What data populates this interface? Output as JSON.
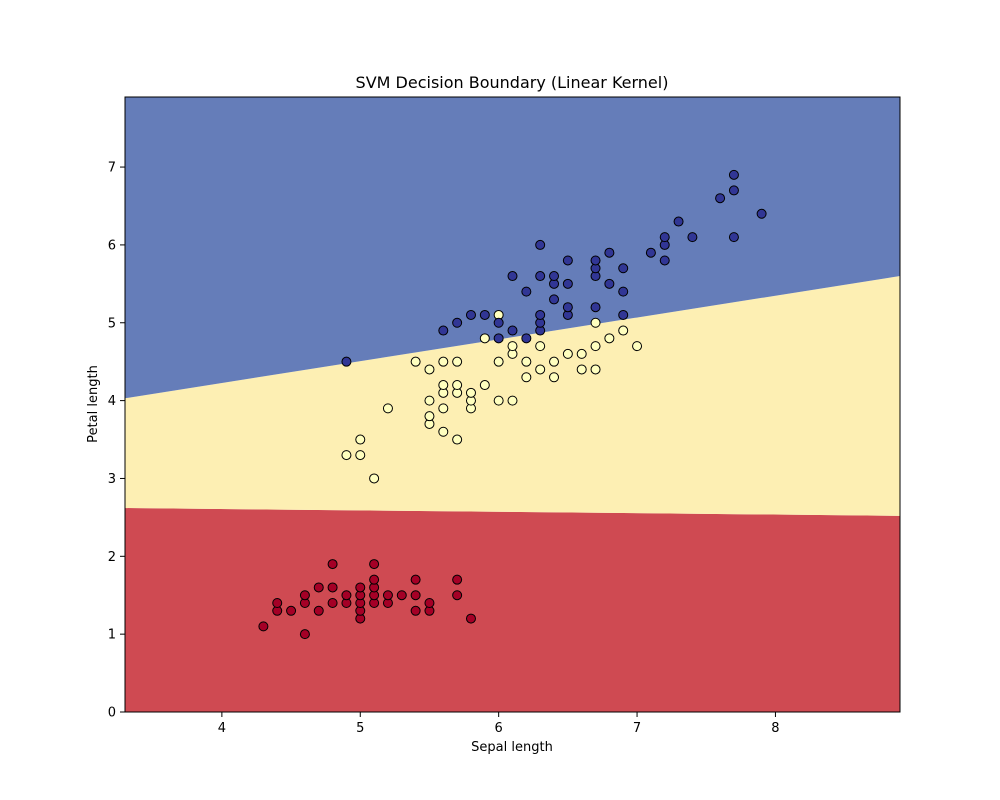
{
  "chart_data": {
    "type": "scatter",
    "title": "SVM Decision Boundary (Linear Kernel)",
    "xlabel": "Sepal length",
    "ylabel": "Petal length",
    "xlim": [
      3.3,
      8.9
    ],
    "ylim": [
      0,
      7.9
    ],
    "xticks": [
      4,
      5,
      6,
      7,
      8
    ],
    "yticks": [
      0,
      1,
      2,
      3,
      4,
      5,
      6,
      7
    ],
    "grid": false,
    "legend": "none",
    "regions": [
      {
        "name": "class-0-region",
        "color": "#cf4a52",
        "polygon": [
          [
            3.3,
            0
          ],
          [
            8.9,
            0
          ],
          [
            8.9,
            2.52
          ],
          [
            3.3,
            2.62
          ]
        ]
      },
      {
        "name": "class-1-region",
        "color": "#fdefb3",
        "polygon": [
          [
            3.3,
            2.62
          ],
          [
            8.9,
            2.52
          ],
          [
            8.9,
            5.6
          ],
          [
            3.3,
            4.03
          ]
        ]
      },
      {
        "name": "class-2-region",
        "color": "#657db9",
        "polygon": [
          [
            3.3,
            4.03
          ],
          [
            8.9,
            5.6
          ],
          [
            8.9,
            7.9
          ],
          [
            3.3,
            7.9
          ]
        ]
      }
    ],
    "series": [
      {
        "color": "#a50026",
        "points": [
          [
            4.3,
            1.1
          ],
          [
            4.4,
            1.3
          ],
          [
            4.4,
            1.4
          ],
          [
            4.5,
            1.3
          ],
          [
            4.6,
            1.0
          ],
          [
            4.6,
            1.4
          ],
          [
            4.6,
            1.5
          ],
          [
            4.7,
            1.3
          ],
          [
            4.7,
            1.6
          ],
          [
            4.8,
            1.4
          ],
          [
            4.8,
            1.6
          ],
          [
            4.8,
            1.9
          ],
          [
            4.9,
            1.4
          ],
          [
            4.9,
            1.5
          ],
          [
            5.0,
            1.2
          ],
          [
            5.0,
            1.3
          ],
          [
            5.0,
            1.4
          ],
          [
            5.0,
            1.5
          ],
          [
            5.0,
            1.6
          ],
          [
            5.1,
            1.4
          ],
          [
            5.1,
            1.5
          ],
          [
            5.1,
            1.6
          ],
          [
            5.1,
            1.7
          ],
          [
            5.1,
            1.9
          ],
          [
            5.2,
            1.4
          ],
          [
            5.2,
            1.5
          ],
          [
            5.3,
            1.5
          ],
          [
            5.4,
            1.3
          ],
          [
            5.4,
            1.5
          ],
          [
            5.4,
            1.7
          ],
          [
            5.5,
            1.3
          ],
          [
            5.5,
            1.4
          ],
          [
            5.7,
            1.5
          ],
          [
            5.7,
            1.7
          ],
          [
            5.8,
            1.2
          ]
        ]
      },
      {
        "color": "#ffffbf",
        "points": [
          [
            4.9,
            3.3
          ],
          [
            5.0,
            3.3
          ],
          [
            5.0,
            3.5
          ],
          [
            5.1,
            3.0
          ],
          [
            5.2,
            3.9
          ],
          [
            5.4,
            4.5
          ],
          [
            5.5,
            3.7
          ],
          [
            5.5,
            3.8
          ],
          [
            5.5,
            4.0
          ],
          [
            5.5,
            4.4
          ],
          [
            5.6,
            3.6
          ],
          [
            5.6,
            3.9
          ],
          [
            5.6,
            4.1
          ],
          [
            5.6,
            4.2
          ],
          [
            5.6,
            4.5
          ],
          [
            5.7,
            3.5
          ],
          [
            5.7,
            4.1
          ],
          [
            5.7,
            4.2
          ],
          [
            5.7,
            4.5
          ],
          [
            5.8,
            3.9
          ],
          [
            5.8,
            4.0
          ],
          [
            5.8,
            4.1
          ],
          [
            5.9,
            4.2
          ],
          [
            5.9,
            4.8
          ],
          [
            6.0,
            4.0
          ],
          [
            6.0,
            4.5
          ],
          [
            6.0,
            5.1
          ],
          [
            6.1,
            4.0
          ],
          [
            6.1,
            4.6
          ],
          [
            6.1,
            4.7
          ],
          [
            6.2,
            4.3
          ],
          [
            6.2,
            4.5
          ],
          [
            6.3,
            4.4
          ],
          [
            6.3,
            4.7
          ],
          [
            6.4,
            4.3
          ],
          [
            6.4,
            4.5
          ],
          [
            6.5,
            4.6
          ],
          [
            6.6,
            4.4
          ],
          [
            6.6,
            4.6
          ],
          [
            6.7,
            4.4
          ],
          [
            6.7,
            4.7
          ],
          [
            6.7,
            5.0
          ],
          [
            6.8,
            4.8
          ],
          [
            6.9,
            4.9
          ],
          [
            7.0,
            4.7
          ]
        ]
      },
      {
        "color": "#313695",
        "points": [
          [
            4.9,
            4.5
          ],
          [
            5.6,
            4.9
          ],
          [
            5.7,
            5.0
          ],
          [
            5.8,
            5.1
          ],
          [
            5.9,
            5.1
          ],
          [
            6.0,
            4.8
          ],
          [
            6.0,
            5.0
          ],
          [
            6.1,
            4.9
          ],
          [
            6.1,
            5.6
          ],
          [
            6.2,
            4.8
          ],
          [
            6.2,
            5.4
          ],
          [
            6.3,
            4.9
          ],
          [
            6.3,
            5.0
          ],
          [
            6.3,
            5.1
          ],
          [
            6.3,
            5.6
          ],
          [
            6.3,
            6.0
          ],
          [
            6.4,
            5.3
          ],
          [
            6.4,
            5.5
          ],
          [
            6.4,
            5.6
          ],
          [
            6.5,
            5.1
          ],
          [
            6.5,
            5.2
          ],
          [
            6.5,
            5.5
          ],
          [
            6.5,
            5.8
          ],
          [
            6.7,
            5.2
          ],
          [
            6.7,
            5.6
          ],
          [
            6.7,
            5.7
          ],
          [
            6.7,
            5.8
          ],
          [
            6.8,
            5.5
          ],
          [
            6.8,
            5.9
          ],
          [
            6.9,
            5.1
          ],
          [
            6.9,
            5.4
          ],
          [
            6.9,
            5.7
          ],
          [
            7.1,
            5.9
          ],
          [
            7.2,
            5.8
          ],
          [
            7.2,
            6.0
          ],
          [
            7.2,
            6.1
          ],
          [
            7.3,
            6.3
          ],
          [
            7.4,
            6.1
          ],
          [
            7.6,
            6.6
          ],
          [
            7.7,
            6.1
          ],
          [
            7.7,
            6.7
          ],
          [
            7.7,
            6.9
          ],
          [
            7.9,
            6.4
          ]
        ]
      }
    ]
  }
}
